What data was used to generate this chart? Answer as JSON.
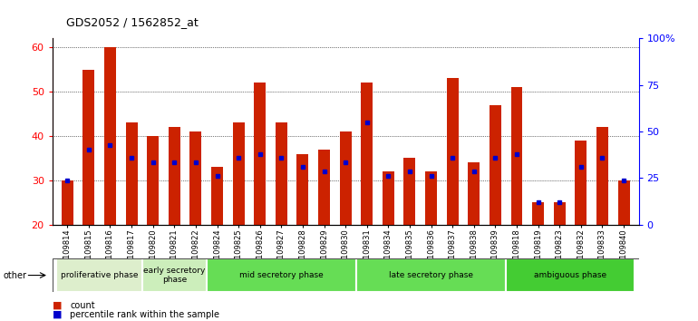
{
  "title": "GDS2052 / 1562852_at",
  "samples": [
    "GSM109814",
    "GSM109815",
    "GSM109816",
    "GSM109817",
    "GSM109820",
    "GSM109821",
    "GSM109822",
    "GSM109824",
    "GSM109825",
    "GSM109826",
    "GSM109827",
    "GSM109828",
    "GSM109829",
    "GSM109830",
    "GSM109831",
    "GSM109834",
    "GSM109835",
    "GSM109836",
    "GSM109837",
    "GSM109838",
    "GSM109839",
    "GSM109818",
    "GSM109819",
    "GSM109823",
    "GSM109832",
    "GSM109833",
    "GSM109840"
  ],
  "count": [
    30,
    55,
    60,
    43,
    40,
    42,
    41,
    33,
    43,
    52,
    43,
    36,
    37,
    41,
    52,
    32,
    35,
    32,
    53,
    34,
    47,
    51,
    25,
    25,
    39,
    42,
    30
  ],
  "percentile": [
    30,
    37,
    38,
    35,
    34,
    34,
    34,
    31,
    35,
    36,
    35,
    33,
    32,
    34,
    43,
    31,
    32,
    31,
    35,
    32,
    35,
    36,
    25,
    25,
    33,
    35,
    30
  ],
  "ylim_left": [
    20,
    62
  ],
  "ylim_right": [
    0,
    100
  ],
  "yticks_left": [
    20,
    30,
    40,
    50,
    60
  ],
  "yticks_right": [
    0,
    25,
    50,
    75,
    100
  ],
  "ytick_labels_right": [
    "0",
    "25",
    "50",
    "75",
    "100%"
  ],
  "bar_color": "#CC2200",
  "marker_color": "#0000CC",
  "phase_defs": [
    {
      "label": "proliferative phase",
      "start": 0,
      "end": 4,
      "color": "#DDEECC"
    },
    {
      "label": "early secretory\nphase",
      "start": 4,
      "end": 7,
      "color": "#CCEEBB"
    },
    {
      "label": "mid secretory phase",
      "start": 7,
      "end": 14,
      "color": "#66DD55"
    },
    {
      "label": "late secretory phase",
      "start": 14,
      "end": 21,
      "color": "#66DD55"
    },
    {
      "label": "ambiguous phase",
      "start": 21,
      "end": 27,
      "color": "#44CC33"
    }
  ],
  "legend_count_label": "count",
  "legend_pct_label": "percentile rank within the sample",
  "bg_color": "#FFFFFF",
  "bar_width": 0.55,
  "n_samples": 27
}
